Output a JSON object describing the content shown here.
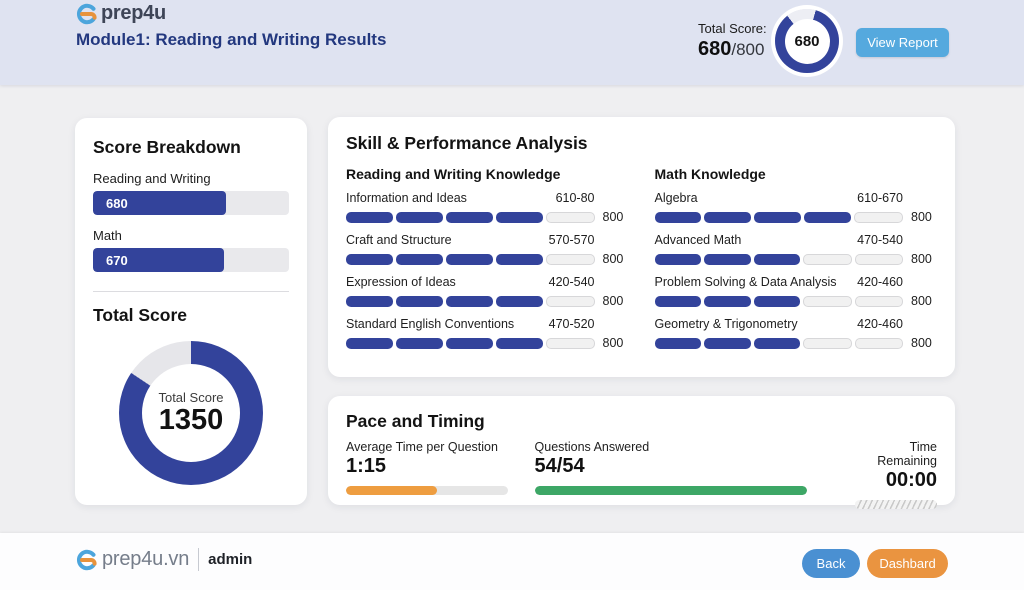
{
  "header": {
    "logo_text": "prep4u",
    "title": "Module1: Reading and Writing Results",
    "total_label": "Total Score:",
    "score_bold": "680",
    "score_rest": "/800",
    "donut_center": "680",
    "donut_pct": 85,
    "view_report": "View Report"
  },
  "score_breakdown": {
    "title": "Score Breakdown",
    "bars": [
      {
        "label": "Reading and Writing",
        "value": "680",
        "pct": 68
      },
      {
        "label": "Math",
        "value": "670",
        "pct": 67
      }
    ],
    "total_heading": "Total Score",
    "donut": {
      "center_label": "Total Score",
      "center_value": "1350",
      "pct": 84.4
    }
  },
  "skills": {
    "title": "Skill & Performance Analysis",
    "columns": [
      {
        "heading": "Reading and Writing Knowledge",
        "rows": [
          {
            "name": "Information and Ideas",
            "range": "610-80",
            "filled": 4,
            "segments": 5,
            "max": "800"
          },
          {
            "name": "Craft and Structure",
            "range": "570-570",
            "filled": 4,
            "segments": 5,
            "max": "800"
          },
          {
            "name": "Expression of Ideas",
            "range": "420-540",
            "filled": 4,
            "segments": 5,
            "max": "800"
          },
          {
            "name": "Standard English Conventions",
            "range": "470-520",
            "filled": 4,
            "segments": 5,
            "max": "800"
          }
        ]
      },
      {
        "heading": "Math Knowledge",
        "rows": [
          {
            "name": "Algebra",
            "range": "610-670",
            "filled": 4,
            "segments": 5,
            "max": "800"
          },
          {
            "name": "Advanced Math",
            "range": "470-540",
            "filled": 3,
            "segments": 5,
            "max": "800"
          },
          {
            "name": "Problem Solving & Data Analysis",
            "range": "420-460",
            "filled": 3,
            "segments": 5,
            "max": "800"
          },
          {
            "name": "Geometry & Trigonometry",
            "range": "420-460",
            "filled": 3,
            "segments": 5,
            "max": "800"
          }
        ]
      }
    ]
  },
  "pace": {
    "title": "Pace and Timing",
    "metrics": [
      {
        "label": "Average Time per Question",
        "value": "1:15",
        "pct": 56,
        "style": "solid",
        "color": "#ee9d40"
      },
      {
        "label": "Questions Answered",
        "value": "54/54",
        "pct": 100,
        "style": "solid",
        "color": "#3da766"
      },
      {
        "label": "Time Remaining",
        "value": "00:00",
        "pct": 0,
        "style": "striped",
        "color": ""
      }
    ]
  },
  "footer": {
    "logo_text": "prep4u.vn",
    "user": "admin",
    "back_label": "Back",
    "dashboard_label": "Dashbard"
  },
  "colors": {
    "navy": "#33439b",
    "donut_track": "#e6e6ea",
    "header_bg": "#dfe3f1",
    "view_report_blue": "#55a9de",
    "back_blue": "#4a90d2",
    "dashboard_orange": "#ea9440",
    "pace_orange": "#ee9d40",
    "pace_green": "#3da766",
    "logo_blue": "#4ca5dc",
    "logo_orange": "#e8933c"
  }
}
